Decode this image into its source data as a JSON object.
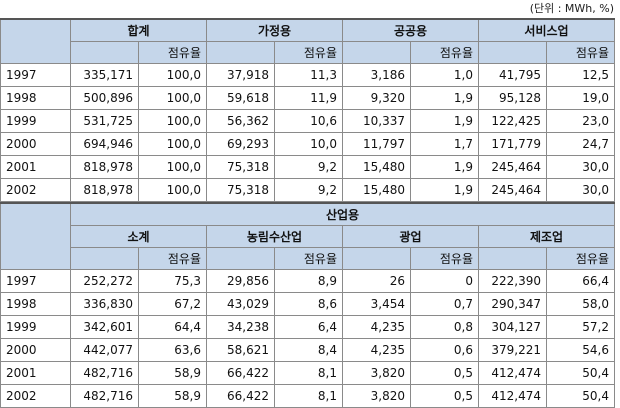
{
  "unit_note": "(단위 : MWh, %)",
  "share_label": "점유율",
  "table1": {
    "groups": [
      "합계",
      "가정용",
      "공공용",
      "서비스업"
    ],
    "rows": [
      {
        "year": "1997",
        "cells": [
          "335,171",
          "100,0",
          "37,918",
          "11,3",
          "3,186",
          "1,0",
          "41,795",
          "12,5"
        ]
      },
      {
        "year": "1998",
        "cells": [
          "500,896",
          "100,0",
          "59,618",
          "11,9",
          "9,320",
          "1,9",
          "95,128",
          "19,0"
        ]
      },
      {
        "year": "1999",
        "cells": [
          "531,725",
          "100,0",
          "56,362",
          "10,6",
          "10,337",
          "1,9",
          "122,425",
          "23,0"
        ]
      },
      {
        "year": "2000",
        "cells": [
          "694,946",
          "100,0",
          "69,293",
          "10,0",
          "11,797",
          "1,7",
          "171,779",
          "24,7"
        ]
      },
      {
        "year": "2001",
        "cells": [
          "818,978",
          "100,0",
          "75,318",
          "9,2",
          "15,480",
          "1,9",
          "245,464",
          "30,0"
        ]
      },
      {
        "year": "2002",
        "cells": [
          "818,978",
          "100,0",
          "75,318",
          "9,2",
          "15,480",
          "1,9",
          "245,464",
          "30,0"
        ]
      }
    ]
  },
  "table2": {
    "super_header": "산업용",
    "groups": [
      "소계",
      "농림수산업",
      "광업",
      "제조업"
    ],
    "rows": [
      {
        "year": "1997",
        "cells": [
          "252,272",
          "75,3",
          "29,856",
          "8,9",
          "26",
          "0",
          "222,390",
          "66,4"
        ]
      },
      {
        "year": "1998",
        "cells": [
          "336,830",
          "67,2",
          "43,029",
          "8,6",
          "3,454",
          "0,7",
          "290,347",
          "58,0"
        ]
      },
      {
        "year": "1999",
        "cells": [
          "342,601",
          "64,4",
          "34,238",
          "6,4",
          "4,235",
          "0,8",
          "304,127",
          "57,2"
        ]
      },
      {
        "year": "2000",
        "cells": [
          "442,077",
          "63,6",
          "58,621",
          "8,4",
          "4,235",
          "0,6",
          "379,221",
          "54,6"
        ]
      },
      {
        "year": "2001",
        "cells": [
          "482,716",
          "58,9",
          "66,422",
          "8,1",
          "3,820",
          "0,5",
          "412,474",
          "50,4"
        ]
      },
      {
        "year": "2002",
        "cells": [
          "482,716",
          "58,9",
          "66,422",
          "8,1",
          "3,820",
          "0,5",
          "412,474",
          "50,4"
        ]
      }
    ]
  }
}
